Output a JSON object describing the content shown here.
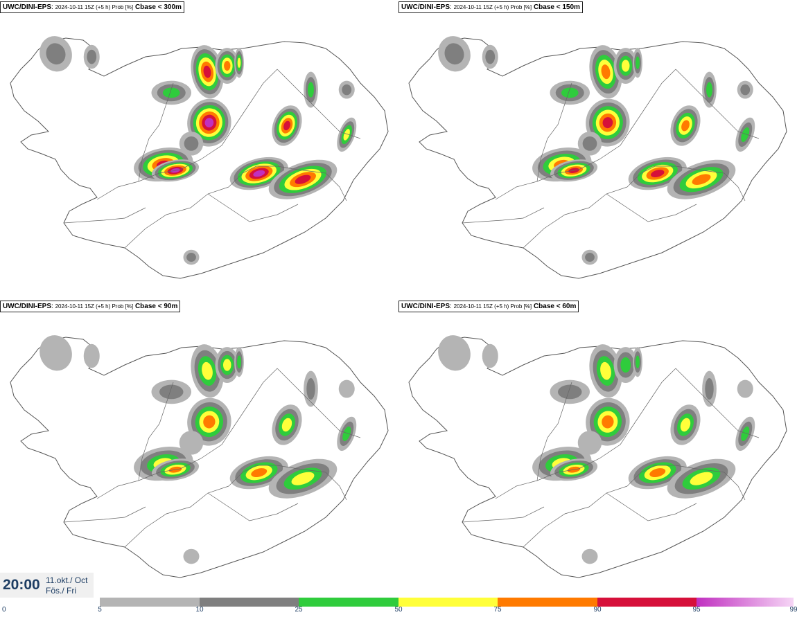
{
  "panels": [
    {
      "source": "UWC/DINI-EPS",
      "meta": "2024-10-11 15Z (+5 h) Prob [%]",
      "variable": "Cbase < 300m",
      "intensity": 1.0
    },
    {
      "source": "UWC/DINI-EPS",
      "meta": "2024-10-11 15Z (+5 h) Prob [%]",
      "variable": "Cbase < 150m",
      "intensity": 0.85
    },
    {
      "source": "UWC/DINI-EPS",
      "meta": "2024-10-11 15Z (+5 h) Prob [%]",
      "variable": "Cbase < 90m",
      "intensity": 0.72
    },
    {
      "source": "UWC/DINI-EPS",
      "meta": "2024-10-11 15Z (+5 h) Prob [%]",
      "variable": "Cbase < 60m",
      "intensity": 0.65
    }
  ],
  "valid_time": {
    "time": "20:00",
    "date_line1": "11.okt./ Oct",
    "date_line2": "Fös./ Fri"
  },
  "legend": {
    "ticks": [
      "0",
      "5",
      "10",
      "25",
      "50",
      "75",
      "90",
      "95",
      "99"
    ],
    "colors": [
      "#ffffff",
      "#b4b4b4",
      "#7f7f7f",
      "#2fcc3c",
      "#ffff3a",
      "#ff7a00",
      "#d6103a",
      "#c030c0"
    ],
    "unit": "%"
  }
}
